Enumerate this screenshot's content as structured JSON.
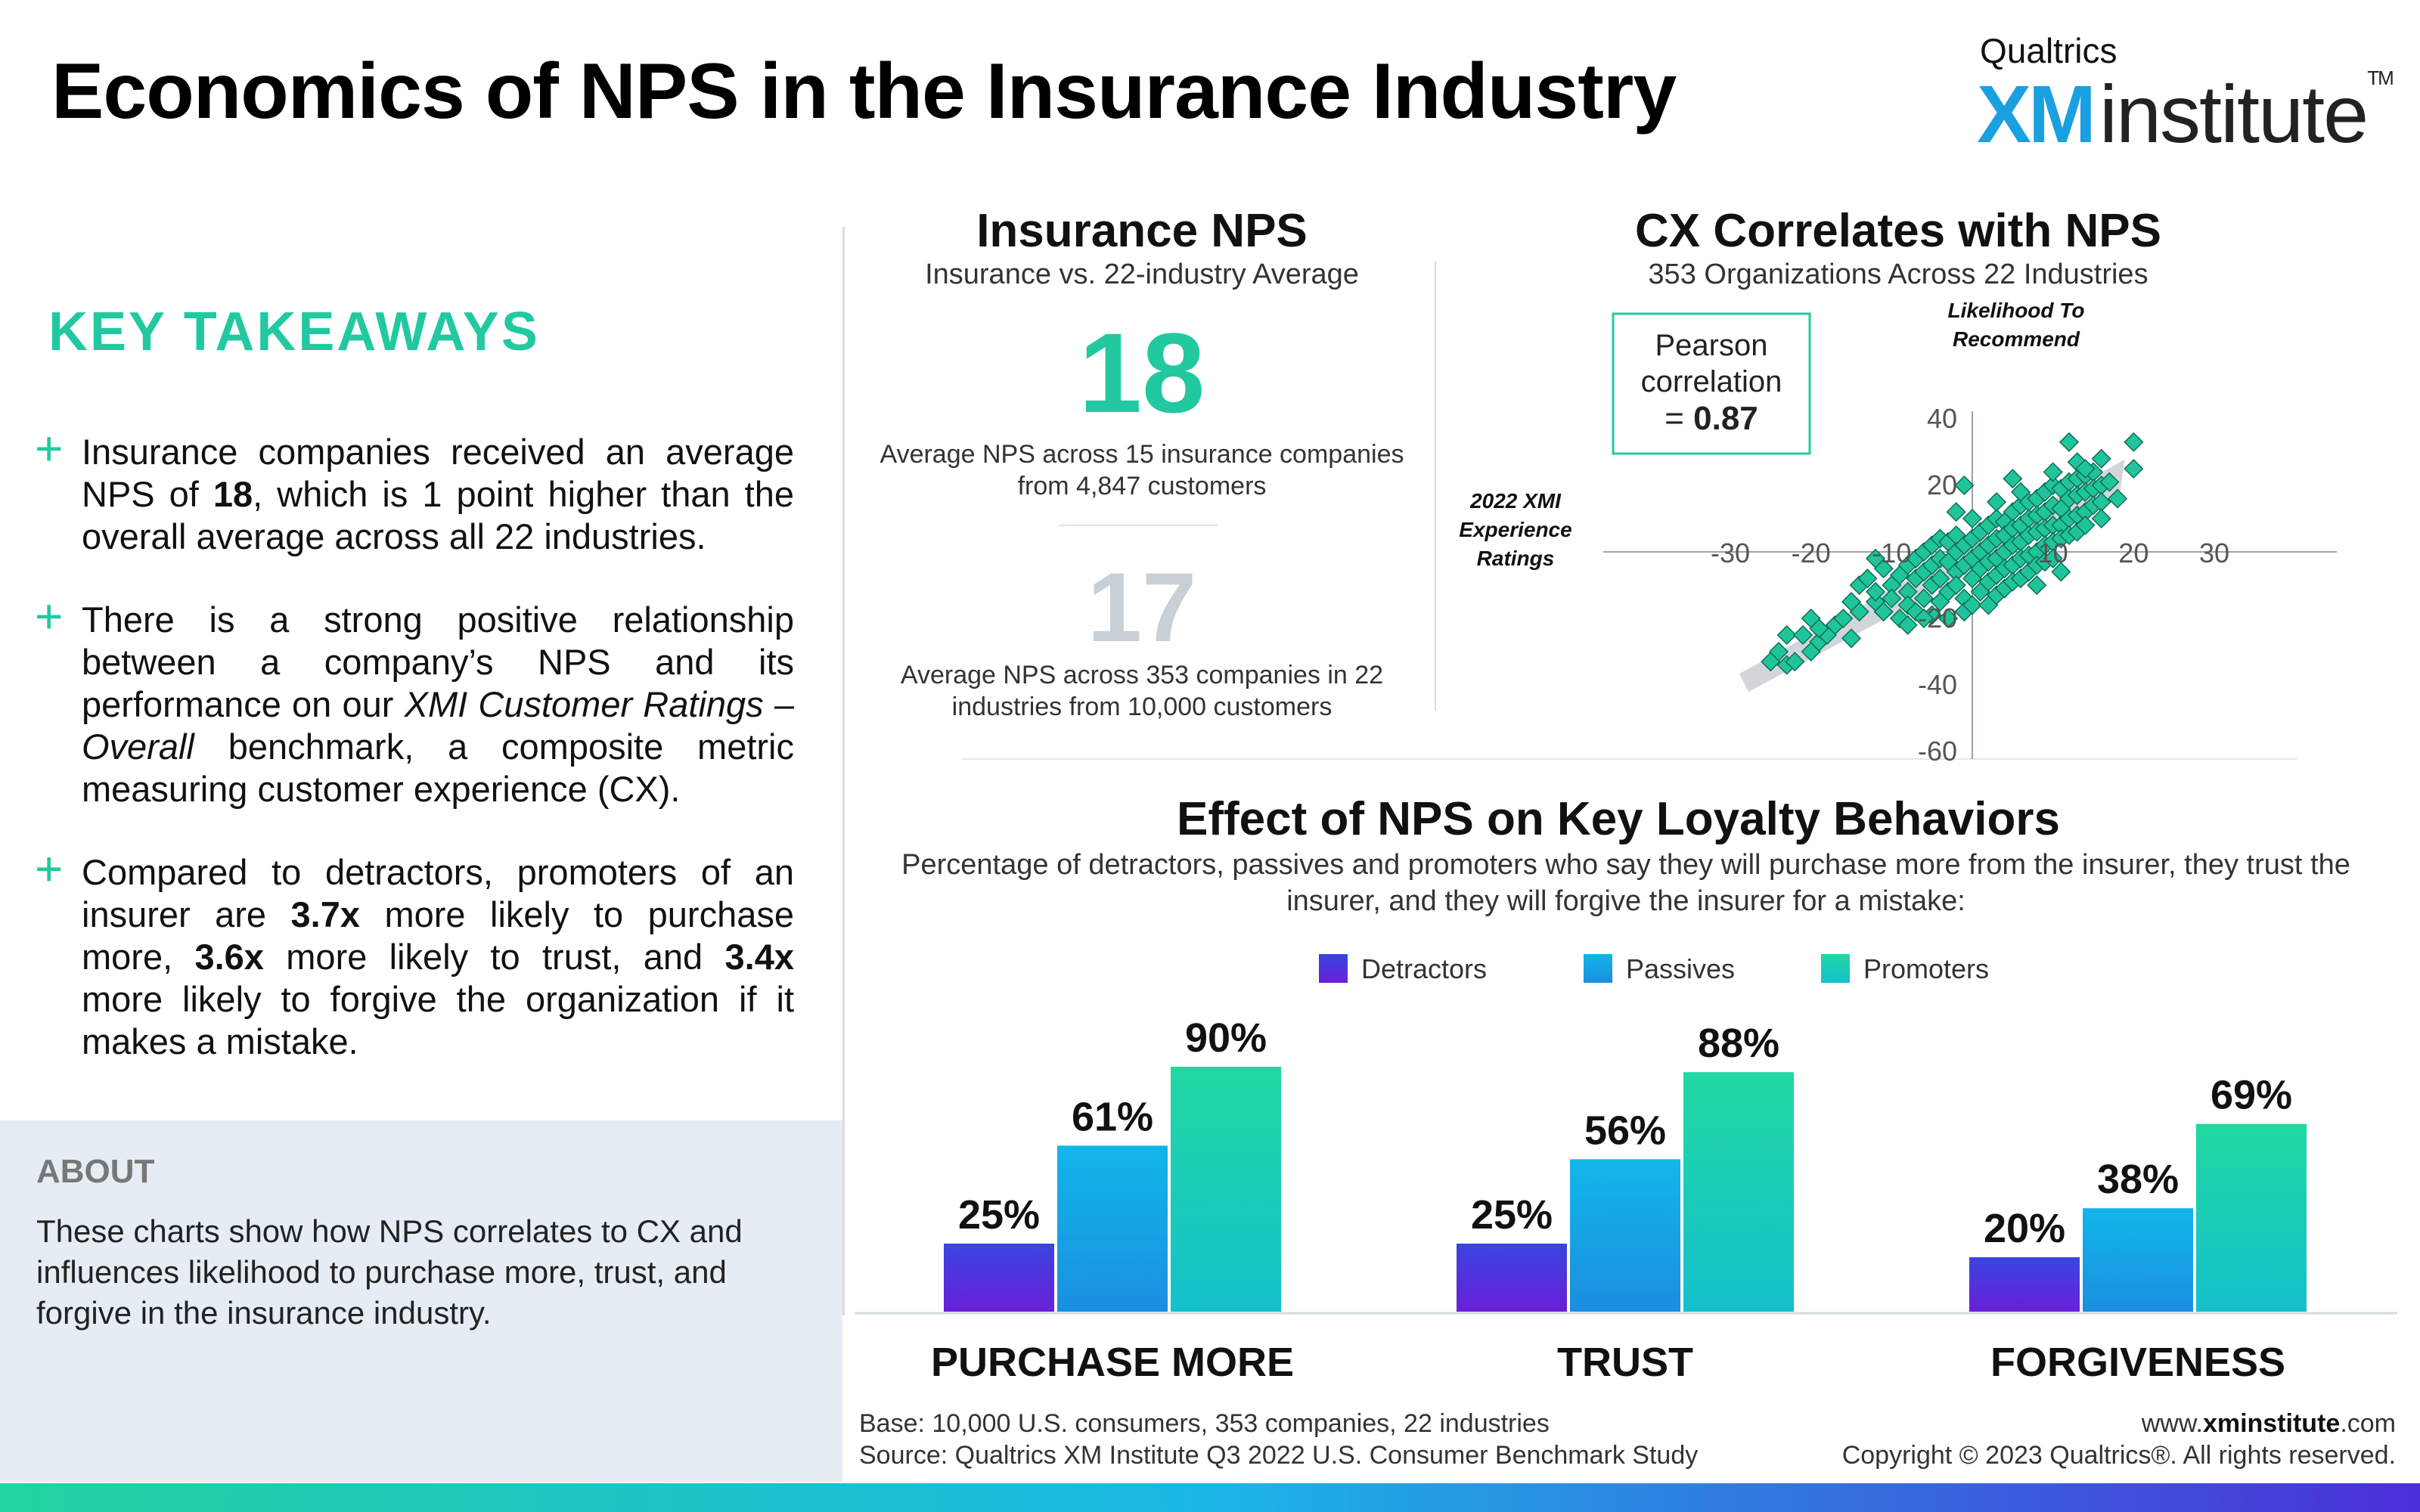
{
  "header": {
    "title": "Economics of NPS in the Insurance Industry",
    "brand_small": "Qualtrics",
    "brand_xm": "XM",
    "brand_institute": "institute",
    "brand_tm": "TM"
  },
  "takeaways": {
    "heading": "KEY TAKEAWAYS",
    "items": [
      {
        "pre": "Insurance companies received an average NPS of ",
        "b1": "18",
        "post": ", which is 1 point higher than the overall average across all 22 industries."
      },
      {
        "pre": "There is a strong positive relationship between a company’s NPS and its performance on our ",
        "i1": "XMI Customer Ratings – Overall",
        "post": " benchmark, a composite metric measuring customer experience (CX)."
      },
      {
        "pre": "Compared to detractors, promoters of an insurer are ",
        "b1": "3.7x",
        "mid1": " more likely to purchase more, ",
        "b2": "3.6x",
        "mid2": " more likely to trust, and ",
        "b3": "3.4x",
        "post": " more likely to forgive the organization if it makes a mistake."
      }
    ]
  },
  "about": {
    "heading": "ABOUT",
    "text": "These charts show how NPS correlates to CX and influences likelihood to purchase more, trust, and forgive in the insurance industry."
  },
  "nps": {
    "title": "Insurance NPS",
    "subtitle": "Insurance vs. 22-industry Average",
    "insurance_value": "18",
    "insurance_desc": "Average NPS across 15 insurance companies from 4,847 customers",
    "overall_value": "17",
    "overall_desc": "Average NPS across 353 companies in 22 industries from 10,000 customers"
  },
  "chart_data": [
    {
      "type": "scatter",
      "title": "CX Correlates with NPS",
      "subtitle": "353 Organizations Across 22 Industries",
      "xlabel": "2022 XMI Experience Ratings",
      "ylabel": "Likelihood To Recommend",
      "annotation": {
        "line1": "Pearson",
        "line2": "correlation",
        "line3_pre": "= ",
        "line3_bold": "0.87"
      },
      "xlim": [
        -30,
        30
      ],
      "ylim": [
        -60,
        40
      ],
      "x_ticks": [
        "-30",
        "-20",
        "-10",
        "10",
        "20",
        "30"
      ],
      "y_ticks": [
        "40",
        "20",
        "-20",
        "-40",
        "-60"
      ],
      "color": "#1fc49a",
      "trend": {
        "x": [
          -27,
          17
        ],
        "y": [
          -33,
          20
        ]
      },
      "points": [
        [
          -25,
          -33
        ],
        [
          -24,
          -30
        ],
        [
          -23,
          -34
        ],
        [
          -22,
          -33
        ],
        [
          -23,
          -25
        ],
        [
          -21,
          -25
        ],
        [
          -20,
          -30
        ],
        [
          -19,
          -27
        ],
        [
          -18,
          -25
        ],
        [
          -19,
          -23
        ],
        [
          -17,
          -22
        ],
        [
          -16,
          -20
        ],
        [
          -15,
          -26
        ],
        [
          -14,
          -18
        ],
        [
          -14,
          -10
        ],
        [
          -13,
          -8
        ],
        [
          -12,
          -15
        ],
        [
          -12,
          -12
        ],
        [
          -11,
          -18
        ],
        [
          -11,
          -5
        ],
        [
          -10,
          -10
        ],
        [
          -10,
          -14
        ],
        [
          -9,
          -7
        ],
        [
          -9,
          -20
        ],
        [
          -8,
          -4
        ],
        [
          -8,
          -12
        ],
        [
          -8,
          -16
        ],
        [
          -7,
          -2
        ],
        [
          -7,
          -8
        ],
        [
          -7,
          -18
        ],
        [
          -6,
          0
        ],
        [
          -6,
          -6
        ],
        [
          -6,
          -14
        ],
        [
          -5,
          2
        ],
        [
          -5,
          -4
        ],
        [
          -5,
          -10
        ],
        [
          -5,
          -19
        ],
        [
          -4,
          4
        ],
        [
          -4,
          -2
        ],
        [
          -4,
          -8
        ],
        [
          -4,
          -15
        ],
        [
          -3,
          3
        ],
        [
          -3,
          -3
        ],
        [
          -3,
          -12
        ],
        [
          -3,
          -20
        ],
        [
          -2,
          5
        ],
        [
          -2,
          0
        ],
        [
          -2,
          -6
        ],
        [
          -2,
          -10
        ],
        [
          -1,
          2
        ],
        [
          -1,
          -4
        ],
        [
          -1,
          -14
        ],
        [
          -1,
          -18
        ],
        [
          0,
          4
        ],
        [
          0,
          -2
        ],
        [
          0,
          -8
        ],
        [
          0,
          -16
        ],
        [
          1,
          6
        ],
        [
          1,
          0
        ],
        [
          1,
          -5
        ],
        [
          1,
          -12
        ],
        [
          2,
          8
        ],
        [
          2,
          2
        ],
        [
          2,
          -3
        ],
        [
          2,
          -9
        ],
        [
          2,
          -16
        ],
        [
          3,
          10
        ],
        [
          3,
          4
        ],
        [
          3,
          -2
        ],
        [
          3,
          -7
        ],
        [
          3,
          -13
        ],
        [
          4,
          9
        ],
        [
          4,
          5
        ],
        [
          4,
          0
        ],
        [
          4,
          -5
        ],
        [
          4,
          -11
        ],
        [
          5,
          12
        ],
        [
          5,
          7
        ],
        [
          5,
          2
        ],
        [
          5,
          -4
        ],
        [
          5,
          -9
        ],
        [
          6,
          14
        ],
        [
          6,
          8
        ],
        [
          6,
          3
        ],
        [
          6,
          -2
        ],
        [
          6,
          -8
        ],
        [
          7,
          15
        ],
        [
          7,
          10
        ],
        [
          7,
          5
        ],
        [
          7,
          -1
        ],
        [
          7,
          -6
        ],
        [
          8,
          16
        ],
        [
          8,
          11
        ],
        [
          8,
          6
        ],
        [
          8,
          0
        ],
        [
          8,
          -4
        ],
        [
          9,
          18
        ],
        [
          9,
          12
        ],
        [
          9,
          7
        ],
        [
          9,
          2
        ],
        [
          9,
          -3
        ],
        [
          10,
          20
        ],
        [
          10,
          14
        ],
        [
          10,
          8
        ],
        [
          10,
          3
        ],
        [
          10,
          -2
        ],
        [
          11,
          19
        ],
        [
          11,
          13
        ],
        [
          11,
          8
        ],
        [
          11,
          4
        ],
        [
          12,
          21
        ],
        [
          12,
          16
        ],
        [
          12,
          10
        ],
        [
          12,
          5
        ],
        [
          13,
          22
        ],
        [
          13,
          17
        ],
        [
          13,
          11
        ],
        [
          13,
          6
        ],
        [
          14,
          23
        ],
        [
          14,
          18
        ],
        [
          14,
          12
        ],
        [
          14,
          8
        ],
        [
          15,
          24
        ],
        [
          15,
          19
        ],
        [
          15,
          14
        ],
        [
          16,
          20
        ],
        [
          16,
          15
        ],
        [
          16,
          10
        ],
        [
          17,
          21
        ],
        [
          18,
          16
        ],
        [
          12,
          33
        ],
        [
          13,
          27
        ],
        [
          14,
          25
        ],
        [
          16,
          28
        ],
        [
          20,
          33
        ],
        [
          20,
          25
        ],
        [
          -1,
          20
        ],
        [
          -12,
          -2
        ],
        [
          5,
          22
        ],
        [
          8,
          -10
        ],
        [
          -6,
          -20
        ],
        [
          -20,
          -20
        ],
        [
          3,
          15
        ],
        [
          6,
          18
        ],
        [
          10,
          24
        ],
        [
          11,
          -6
        ],
        [
          0,
          10
        ],
        [
          -2,
          12
        ],
        [
          -8,
          -22
        ],
        [
          -15,
          -15
        ]
      ]
    },
    {
      "type": "bar",
      "title": "Effect of NPS on Key Loyalty Behaviors",
      "subtitle": "Percentage of detractors, passives and promoters who say they will purchase more from the insurer, they trust the insurer, and they will forgive the insurer for a mistake:",
      "categories": [
        "PURCHASE MORE",
        "TRUST",
        "FORGIVENESS"
      ],
      "series": [
        {
          "name": "Detractors",
          "values": [
            25,
            25,
            20
          ],
          "labels": [
            "25%",
            "25%",
            "20%"
          ],
          "color_top": "#3a45e0",
          "color_bottom": "#6a1fd8"
        },
        {
          "name": "Passives",
          "values": [
            61,
            56,
            38
          ],
          "labels": [
            "61%",
            "56%",
            "38%"
          ],
          "color_top": "#12b6ea",
          "color_bottom": "#1a8fe0"
        },
        {
          "name": "Promoters",
          "values": [
            90,
            88,
            69
          ],
          "labels": [
            "90%",
            "88%",
            "69%"
          ],
          "color_top": "#22d8a2",
          "color_bottom": "#14c0cc"
        }
      ],
      "ylim": [
        0,
        100
      ]
    }
  ],
  "footer": {
    "base": "Base: 10,000 U.S. consumers, 353 companies, 22 industries",
    "source": "Source: Qualtrics XM Institute Q3 2022 U.S. Consumer Benchmark Study",
    "url_pre": "www.",
    "url_bold": "xminstitute",
    "url_post": ".com",
    "copyright": "Copyright © 2023 Qualtrics®. All rights reserved."
  }
}
